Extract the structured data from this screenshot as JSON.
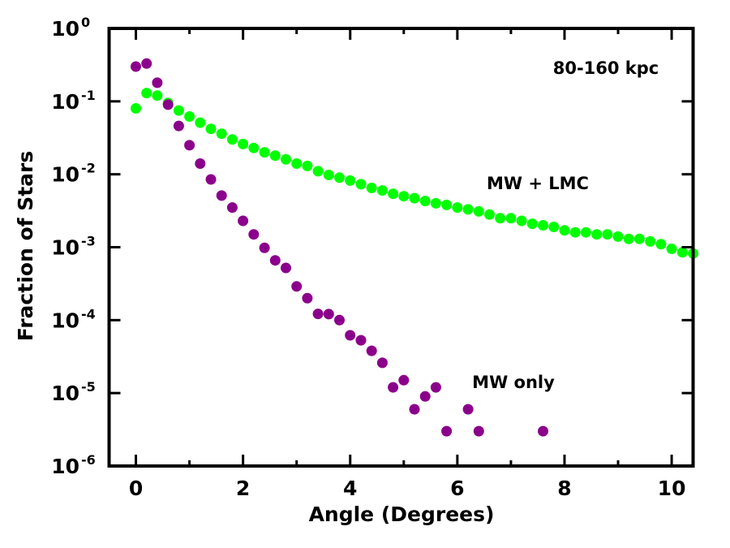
{
  "chart_data": {
    "type": "scatter",
    "title": "",
    "xlabel": "Angle (Degrees)",
    "ylabel": "Fraction of Stars",
    "xlim": [
      -0.5,
      10.4
    ],
    "ylim_log10": [
      -6,
      0
    ],
    "yscale": "log",
    "grid": false,
    "x_ticks": [
      0,
      2,
      4,
      6,
      8,
      10
    ],
    "y_ticks": [
      {
        "base": "10",
        "exp": "0"
      },
      {
        "base": "10",
        "exp": "-1"
      },
      {
        "base": "10",
        "exp": "-2"
      },
      {
        "base": "10",
        "exp": "-3"
      },
      {
        "base": "10",
        "exp": "-4"
      },
      {
        "base": "10",
        "exp": "-5"
      },
      {
        "base": "10",
        "exp": "-6"
      }
    ],
    "annotations": [
      {
        "text": "80-160 kpc",
        "x": 8.8,
        "log10y": -0.55
      },
      {
        "text": "MW + LMC",
        "x": 8.3,
        "log10y": -2.13
      },
      {
        "text": "MW only",
        "x": 6.9,
        "log10y": -4.98
      }
    ],
    "series": [
      {
        "name": "MW + LMC",
        "color": "#00ff00",
        "points": [
          [
            0.0,
            0.08
          ],
          [
            0.2,
            0.13
          ],
          [
            0.4,
            0.12
          ],
          [
            0.6,
            0.095
          ],
          [
            0.8,
            0.075
          ],
          [
            1.0,
            0.062
          ],
          [
            1.2,
            0.051
          ],
          [
            1.4,
            0.042
          ],
          [
            1.6,
            0.036
          ],
          [
            1.8,
            0.03
          ],
          [
            2.0,
            0.026
          ],
          [
            2.2,
            0.023
          ],
          [
            2.4,
            0.02
          ],
          [
            2.6,
            0.018
          ],
          [
            2.8,
            0.016
          ],
          [
            3.0,
            0.014
          ],
          [
            3.2,
            0.013
          ],
          [
            3.4,
            0.011
          ],
          [
            3.6,
            0.0098
          ],
          [
            3.8,
            0.009
          ],
          [
            4.0,
            0.0082
          ],
          [
            4.2,
            0.0073
          ],
          [
            4.4,
            0.0065
          ],
          [
            4.6,
            0.006
          ],
          [
            4.8,
            0.0054
          ],
          [
            5.0,
            0.005
          ],
          [
            5.2,
            0.0047
          ],
          [
            5.4,
            0.0043
          ],
          [
            5.6,
            0.004
          ],
          [
            5.8,
            0.0038
          ],
          [
            6.0,
            0.0035
          ],
          [
            6.2,
            0.0033
          ],
          [
            6.4,
            0.0031
          ],
          [
            6.6,
            0.0028
          ],
          [
            6.8,
            0.0025
          ],
          [
            7.0,
            0.0025
          ],
          [
            7.2,
            0.0023
          ],
          [
            7.4,
            0.0021
          ],
          [
            7.6,
            0.002
          ],
          [
            7.8,
            0.0019
          ],
          [
            8.0,
            0.0017
          ],
          [
            8.2,
            0.0016
          ],
          [
            8.4,
            0.0016
          ],
          [
            8.6,
            0.0015
          ],
          [
            8.8,
            0.0015
          ],
          [
            9.0,
            0.0014
          ],
          [
            9.2,
            0.0013
          ],
          [
            9.4,
            0.0013
          ],
          [
            9.6,
            0.0012
          ],
          [
            9.8,
            0.0011
          ],
          [
            10.0,
            0.00095
          ],
          [
            10.2,
            0.00085
          ],
          [
            10.4,
            0.00082
          ]
        ]
      },
      {
        "name": "MW only",
        "color": "#8b008b",
        "points": [
          [
            0.0,
            0.3
          ],
          [
            0.2,
            0.33
          ],
          [
            0.4,
            0.18
          ],
          [
            0.6,
            0.09
          ],
          [
            0.8,
            0.046
          ],
          [
            1.0,
            0.025
          ],
          [
            1.2,
            0.014
          ],
          [
            1.4,
            0.0085
          ],
          [
            1.6,
            0.0051
          ],
          [
            1.8,
            0.0035
          ],
          [
            2.0,
            0.0023
          ],
          [
            2.2,
            0.0015
          ],
          [
            2.4,
            0.00098
          ],
          [
            2.6,
            0.00066
          ],
          [
            2.8,
            0.00052
          ],
          [
            3.0,
            0.00029
          ],
          [
            3.2,
            0.0002
          ],
          [
            3.4,
            0.000122
          ],
          [
            3.6,
            0.000121
          ],
          [
            3.8,
            0.0001
          ],
          [
            4.0,
            6.2e-05
          ],
          [
            4.2,
            5.3e-05
          ],
          [
            4.4,
            3.8e-05
          ],
          [
            4.6,
            2.6e-05
          ],
          [
            4.8,
            1.2e-05
          ],
          [
            5.0,
            1.5e-05
          ],
          [
            5.2,
            6e-06
          ],
          [
            5.4,
            9e-06
          ],
          [
            5.6,
            1.2e-05
          ],
          [
            5.8,
            3e-06
          ],
          [
            6.2,
            6e-06
          ],
          [
            6.4,
            3e-06
          ],
          [
            7.6,
            3e-06
          ]
        ]
      }
    ]
  }
}
